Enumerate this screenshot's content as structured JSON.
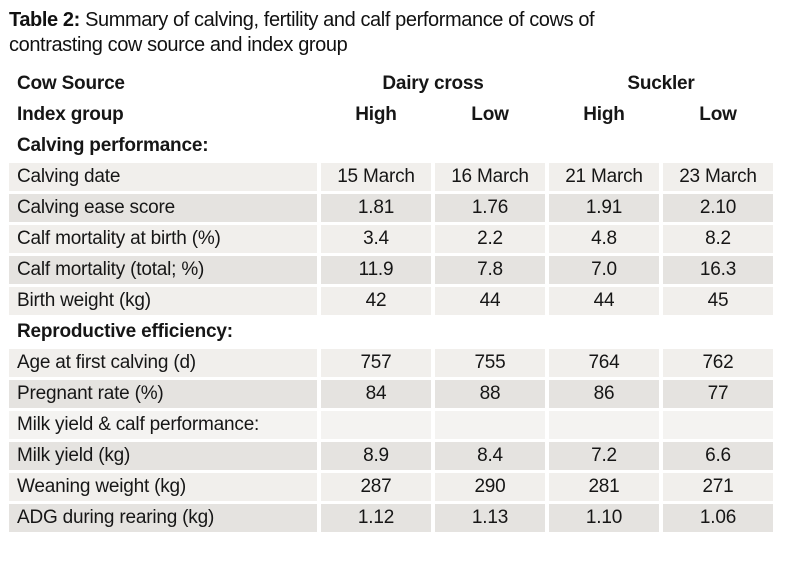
{
  "title": {
    "label": "Table 2:",
    "line1": " Summary of calving, fertility and calf performance of cows of",
    "line2": "contrasting cow source and index group"
  },
  "table": {
    "colors": {
      "row_light": "#f1efec",
      "row_dark": "#e5e3e0",
      "row_lighter": "#f4f3f1",
      "text": "#161616",
      "background": "#ffffff"
    },
    "header": {
      "row1_label": "Cow Source",
      "group1": "Dairy cross",
      "group2": "Suckler",
      "row2_label": "Index group",
      "levels": [
        "High",
        "Low",
        "High",
        "Low"
      ]
    },
    "sections": [
      {
        "heading": "Calving performance:",
        "rows": [
          {
            "label": "Calving date",
            "values": [
              "15 March",
              "16 March",
              "21 March",
              "23 March"
            ]
          },
          {
            "label": "Calving ease score",
            "values": [
              "1.81",
              "1.76",
              "1.91",
              "2.10"
            ]
          },
          {
            "label": "Calf mortality at birth (%)",
            "values": [
              "3.4",
              "2.2",
              "4.8",
              "8.2"
            ]
          },
          {
            "label": "Calf mortality (total; %)",
            "values": [
              "11.9",
              "7.8",
              "7.0",
              "16.3"
            ]
          },
          {
            "label": "Birth weight (kg)",
            "values": [
              "42",
              "44",
              "44",
              "45"
            ]
          }
        ]
      },
      {
        "heading": "Reproductive efficiency:",
        "rows": [
          {
            "label": "Age at first calving (d)",
            "values": [
              "757",
              "755",
              "764",
              "762"
            ]
          },
          {
            "label": "Pregnant rate (%)",
            "values": [
              "84",
              "88",
              "86",
              "77"
            ]
          }
        ]
      },
      {
        "heading": "Milk yield & calf performance:",
        "rows": [
          {
            "label": "Milk yield (kg)",
            "values": [
              "8.9",
              "8.4",
              "7.2",
              "6.6"
            ]
          },
          {
            "label": "Weaning weight (kg)",
            "values": [
              "287",
              "290",
              "281",
              "271"
            ]
          },
          {
            "label": "ADG during rearing (kg)",
            "values": [
              "1.12",
              "1.13",
              "1.10",
              "1.06"
            ]
          }
        ]
      }
    ]
  }
}
